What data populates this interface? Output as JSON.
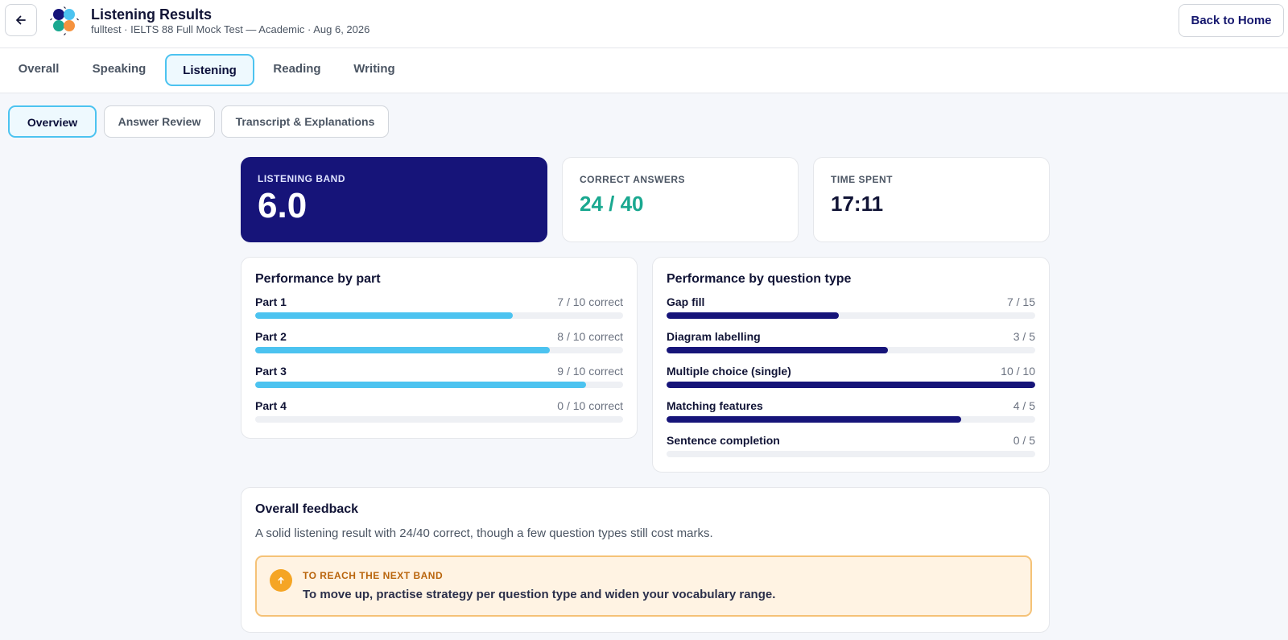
{
  "header": {
    "title": "Listening Results",
    "subtitle": "fulltest · IELTS 88 Full Mock Test — Academic · Aug 6, 2026",
    "back_icon": "arrow-left-icon",
    "home_label": "Back to Home"
  },
  "tabs": [
    {
      "label": "Overall",
      "active": false
    },
    {
      "label": "Speaking",
      "active": false
    },
    {
      "label": "Listening",
      "active": true
    },
    {
      "label": "Reading",
      "active": false
    },
    {
      "label": "Writing",
      "active": false
    }
  ],
  "subtabs": [
    {
      "label": "Overview",
      "active": true
    },
    {
      "label": "Answer Review",
      "active": false
    },
    {
      "label": "Transcript & Explanations",
      "active": false
    }
  ],
  "stats": {
    "band": {
      "label": "LISTENING BAND",
      "value": "6.0"
    },
    "correct": {
      "label": "CORRECT ANSWERS",
      "value": "24 / 40",
      "color": "#1aa890"
    },
    "time": {
      "label": "TIME SPENT",
      "value": "17:11"
    }
  },
  "by_part": {
    "title": "Performance by part",
    "bar_color": "#4cc3f0",
    "items": [
      {
        "label": "Part 1",
        "value": "7 / 10 correct",
        "fraction": 0.7
      },
      {
        "label": "Part 2",
        "value": "8 / 10 correct",
        "fraction": 0.8
      },
      {
        "label": "Part 3",
        "value": "9 / 10 correct",
        "fraction": 0.9
      },
      {
        "label": "Part 4",
        "value": "0 / 10 correct",
        "fraction": 0.0
      }
    ]
  },
  "by_type": {
    "title": "Performance by question type",
    "bar_color": "#161479",
    "items": [
      {
        "label": "Gap fill",
        "value": "7 / 15",
        "fraction": 0.4667
      },
      {
        "label": "Diagram labelling",
        "value": "3 / 5",
        "fraction": 0.6
      },
      {
        "label": "Multiple choice (single)",
        "value": "10 / 10",
        "fraction": 1.0
      },
      {
        "label": "Matching features",
        "value": "4 / 5",
        "fraction": 0.8
      },
      {
        "label": "Sentence completion",
        "value": "0 / 5",
        "fraction": 0.0
      }
    ]
  },
  "feedback": {
    "title": "Overall feedback",
    "text": "A solid listening result with 24/40 correct, though a few question types still cost marks.",
    "tip_icon": "arrow-up-icon",
    "tip_heading": "TO REACH THE NEXT BAND",
    "tip_text": "To move up, practise strategy per question type and widen your vocabulary range."
  }
}
